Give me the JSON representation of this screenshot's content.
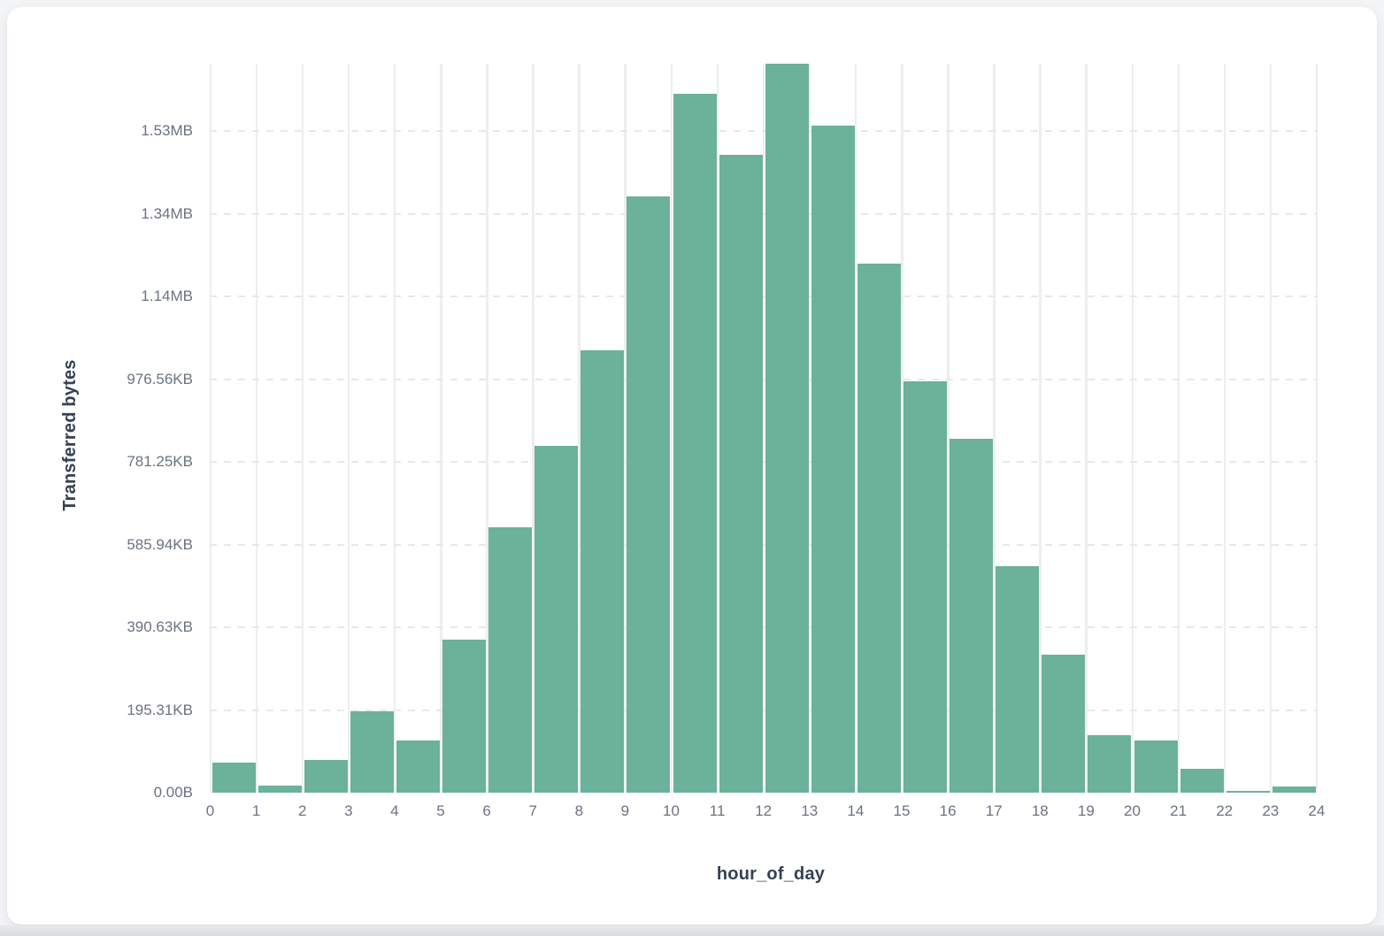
{
  "chart_data": {
    "type": "bar",
    "title": "",
    "xlabel": "hour_of_day",
    "ylabel": "Transferred bytes",
    "categories": [
      0,
      1,
      2,
      3,
      4,
      5,
      6,
      7,
      8,
      9,
      10,
      11,
      12,
      13,
      14,
      15,
      16,
      17,
      18,
      19,
      20,
      21,
      22,
      23
    ],
    "values_bytes": [
      73000,
      17000,
      79000,
      197000,
      126000,
      370000,
      642000,
      839000,
      1070000,
      1442000,
      1690000,
      1542000,
      1765000,
      1613000,
      1279000,
      995000,
      856000,
      548000,
      334000,
      139000,
      126000,
      58000,
      5000,
      15000
    ],
    "x_tick_labels": [
      "0",
      "1",
      "2",
      "3",
      "4",
      "5",
      "6",
      "7",
      "8",
      "9",
      "10",
      "11",
      "12",
      "13",
      "14",
      "15",
      "16",
      "17",
      "18",
      "19",
      "20",
      "21",
      "22",
      "23",
      "24"
    ],
    "y_ticks": [
      {
        "label": "0.00B",
        "value": 0
      },
      {
        "label": "195.31KB",
        "value": 200000
      },
      {
        "label": "390.63KB",
        "value": 400000
      },
      {
        "label": "585.94KB",
        "value": 600000
      },
      {
        "label": "781.25KB",
        "value": 800000
      },
      {
        "label": "976.56KB",
        "value": 1000000
      },
      {
        "label": "1.14MB",
        "value": 1200000
      },
      {
        "label": "1.34MB",
        "value": 1400000
      },
      {
        "label": "1.53MB",
        "value": 1600000
      }
    ],
    "ylim": [
      0,
      1763000
    ],
    "grid": {
      "vertical": "solid",
      "horizontal": "dashed"
    },
    "legend": "none",
    "bar_color": "#6CB19A"
  }
}
